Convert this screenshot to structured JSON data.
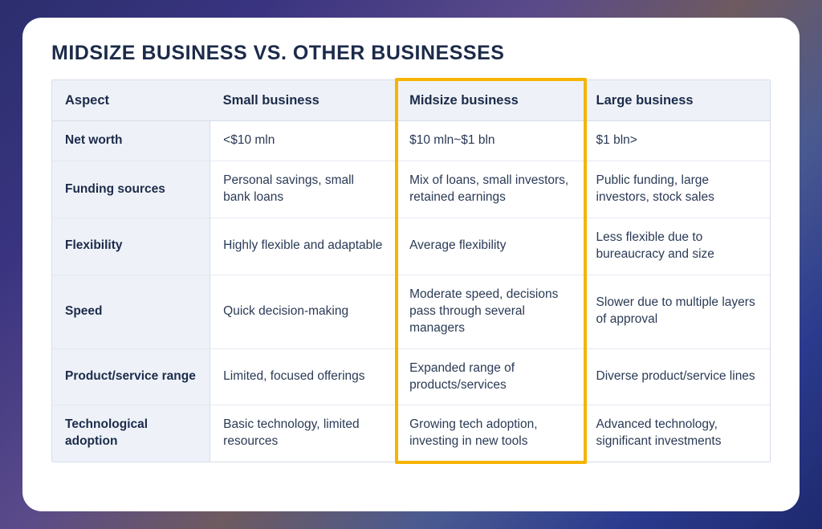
{
  "title": "MIDSIZE BUSINESS VS. OTHER BUSINESSES",
  "table": {
    "columns": [
      {
        "key": "aspect",
        "label": "Aspect"
      },
      {
        "key": "small",
        "label": "Small business"
      },
      {
        "key": "midsize",
        "label": "Midsize business"
      },
      {
        "key": "large",
        "label": "Large business"
      }
    ],
    "rows": [
      {
        "aspect": "Net worth",
        "small": "<$10 mln",
        "midsize": "$10 mln~$1 bln",
        "large": "$1 bln>"
      },
      {
        "aspect": "Funding sources",
        "small": "Personal savings, small bank loans",
        "midsize": "Mix of loans, small investors, retained earnings",
        "large": "Public funding, large investors, stock sales"
      },
      {
        "aspect": "Flexibility",
        "small": "Highly flexible and adaptable",
        "midsize": "Average flexibility",
        "large": "Less flexible due to bureaucracy and size"
      },
      {
        "aspect": "Speed",
        "small": "Quick decision-making",
        "midsize": "Moderate speed, decisions pass through several managers",
        "large": "Slower due to multiple layers of approval"
      },
      {
        "aspect": "Product/service range",
        "small": "Limited, focused offerings",
        "midsize": "Expanded range of products/services",
        "large": "Diverse product/service lines"
      },
      {
        "aspect": "Technological adoption",
        "small": "Basic technology, limited resources",
        "midsize": "Growing tech adoption, investing in new tools",
        "large": "Advanced technology, significant investments"
      }
    ],
    "highlight_column_index": 2,
    "highlight_border_color": "#f5b400",
    "header_bg": "#eef2f8",
    "card_bg": "#ffffff",
    "text_color": "#2a3a55",
    "heading_color": "#1c2b4a",
    "border_color": "#d5dde8"
  }
}
